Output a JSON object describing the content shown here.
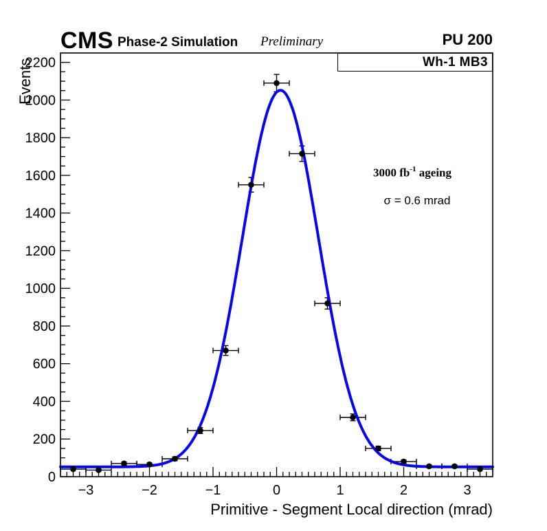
{
  "header": {
    "cms": "CMS",
    "label": "Phase-2 Simulation",
    "sublabel": "Preliminary",
    "pileup": "PU 200"
  },
  "legend": {
    "title": "Wh-1 MB3"
  },
  "annotations": {
    "lumi_pre": "3000 fb",
    "lumi_sup": "-1",
    "lumi_post": " ageing",
    "sigma": "σ = 0.6 mrad"
  },
  "chart_data": {
    "type": "scatter",
    "title": "",
    "xlabel": "Primitive - Segment Local direction (mrad)",
    "ylabel": "Events",
    "xlim": [
      -3.4,
      3.4
    ],
    "ylim": [
      0,
      2250
    ],
    "x_major_ticks": [
      -3,
      -2,
      -1,
      0,
      1,
      2,
      3
    ],
    "x_minor_step": 0.1,
    "y_major_step": 200,
    "y_minor_step": 50,
    "y_tick_max_label": 2200,
    "grid": false,
    "legend_position": "top-right",
    "x_error": 0.2,
    "marker_color": "#000000",
    "points": [
      {
        "x": -3.2,
        "y": 40,
        "ey": 6
      },
      {
        "x": -2.8,
        "y": 35,
        "ey": 6
      },
      {
        "x": -2.4,
        "y": 70,
        "ey": 8
      },
      {
        "x": -2.0,
        "y": 65,
        "ey": 8
      },
      {
        "x": -1.6,
        "y": 95,
        "ey": 10
      },
      {
        "x": -1.2,
        "y": 245,
        "ey": 16
      },
      {
        "x": -0.8,
        "y": 670,
        "ey": 26
      },
      {
        "x": -0.4,
        "y": 1550,
        "ey": 39
      },
      {
        "x": 0.0,
        "y": 2090,
        "ey": 46
      },
      {
        "x": 0.4,
        "y": 1715,
        "ey": 41
      },
      {
        "x": 0.8,
        "y": 920,
        "ey": 30
      },
      {
        "x": 1.2,
        "y": 315,
        "ey": 18
      },
      {
        "x": 1.6,
        "y": 150,
        "ey": 12
      },
      {
        "x": 2.0,
        "y": 80,
        "ey": 9
      },
      {
        "x": 2.4,
        "y": 55,
        "ey": 7
      },
      {
        "x": 2.8,
        "y": 55,
        "ey": 7
      },
      {
        "x": 3.2,
        "y": 40,
        "ey": 6
      }
    ],
    "fit": {
      "type": "gaussian+constant",
      "mean": 0.06,
      "sigma": 0.6,
      "amplitude": 2000,
      "baseline": 52,
      "color": "#0606f0"
    }
  }
}
